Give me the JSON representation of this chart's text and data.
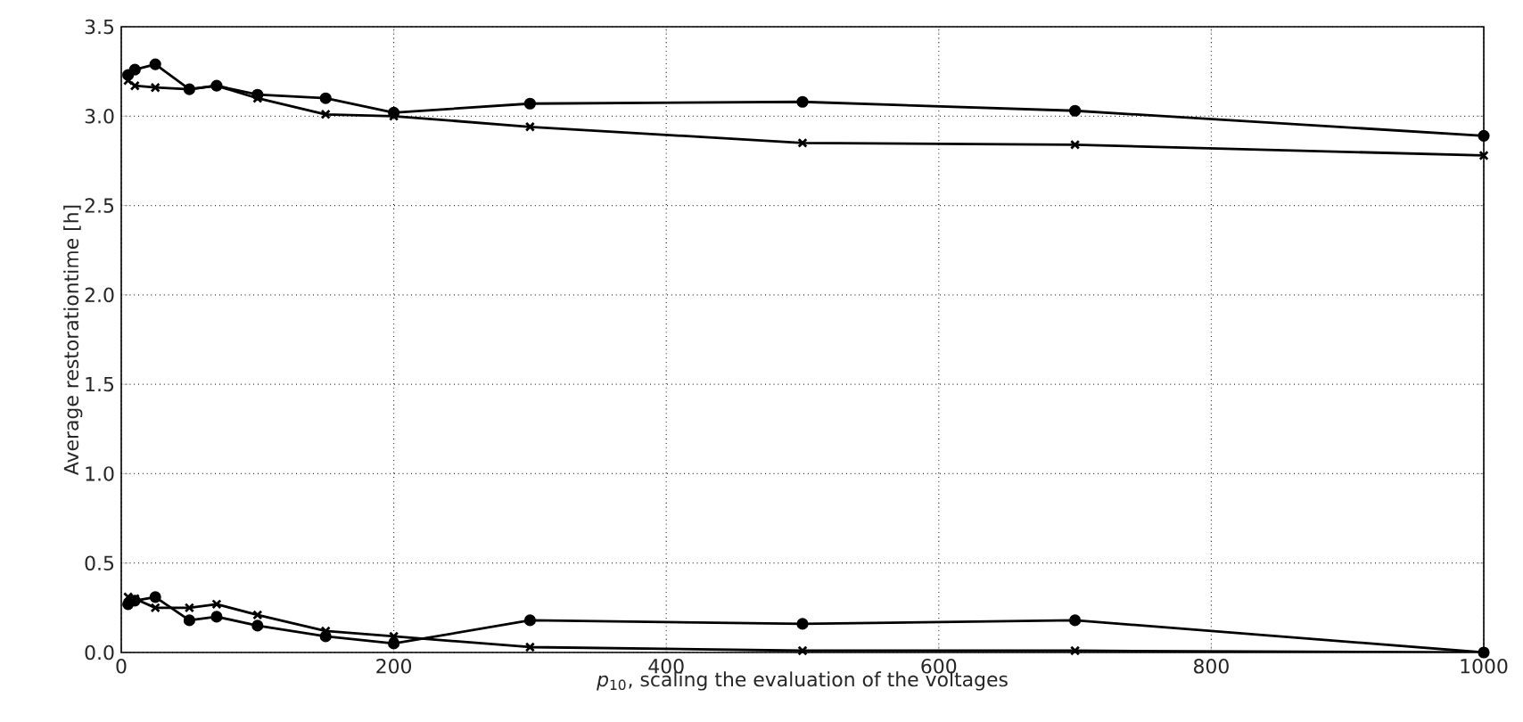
{
  "chart_data": {
    "type": "line",
    "xlabel": "*p*$_{10}$, scaling the evaluation of the voltages",
    "ylabel": "Average restorationtime [h]",
    "x": [
      5,
      10,
      25,
      50,
      70,
      100,
      150,
      200,
      300,
      500,
      700,
      1000
    ],
    "series": [
      {
        "color": "#000000",
        "marker": "circle",
        "values": [
          3.23,
          3.26,
          3.29,
          3.15,
          3.17,
          3.12,
          3.1,
          3.02,
          3.07,
          3.08,
          3.03,
          2.89
        ]
      },
      {
        "color": "#000000",
        "marker": "cross",
        "values": [
          3.2,
          3.17,
          3.16,
          3.15,
          3.17,
          3.1,
          3.01,
          3.0,
          2.94,
          2.85,
          2.84,
          2.78
        ]
      },
      {
        "color": "#000000",
        "marker": "circle",
        "values": [
          0.27,
          0.29,
          0.31,
          0.18,
          0.2,
          0.15,
          0.09,
          0.05,
          0.18,
          0.16,
          0.18,
          0.0
        ]
      },
      {
        "color": "#000000",
        "marker": "cross",
        "values": [
          0.31,
          0.3,
          0.25,
          0.25,
          0.27,
          0.21,
          0.12,
          0.09,
          0.03,
          0.01,
          0.01,
          0.0
        ]
      }
    ],
    "xlim": [
      0,
      1000
    ],
    "ylim": [
      0,
      3.5
    ],
    "xticks": [
      0,
      200,
      400,
      600,
      800,
      1000
    ],
    "yticks": [
      {
        "value": 0,
        "label": "0.0"
      },
      {
        "value": 0.5,
        "label": "0.5"
      },
      {
        "value": 1,
        "label": "1.0"
      },
      {
        "value": 1.5,
        "label": "1.5"
      },
      {
        "value": 2,
        "label": "2.0"
      },
      {
        "value": 2.5,
        "label": "2.5"
      },
      {
        "value": 3,
        "label": "3.0"
      },
      {
        "value": 3.5,
        "label": "3.5"
      }
    ],
    "grid": true,
    "line_style": "solid"
  }
}
